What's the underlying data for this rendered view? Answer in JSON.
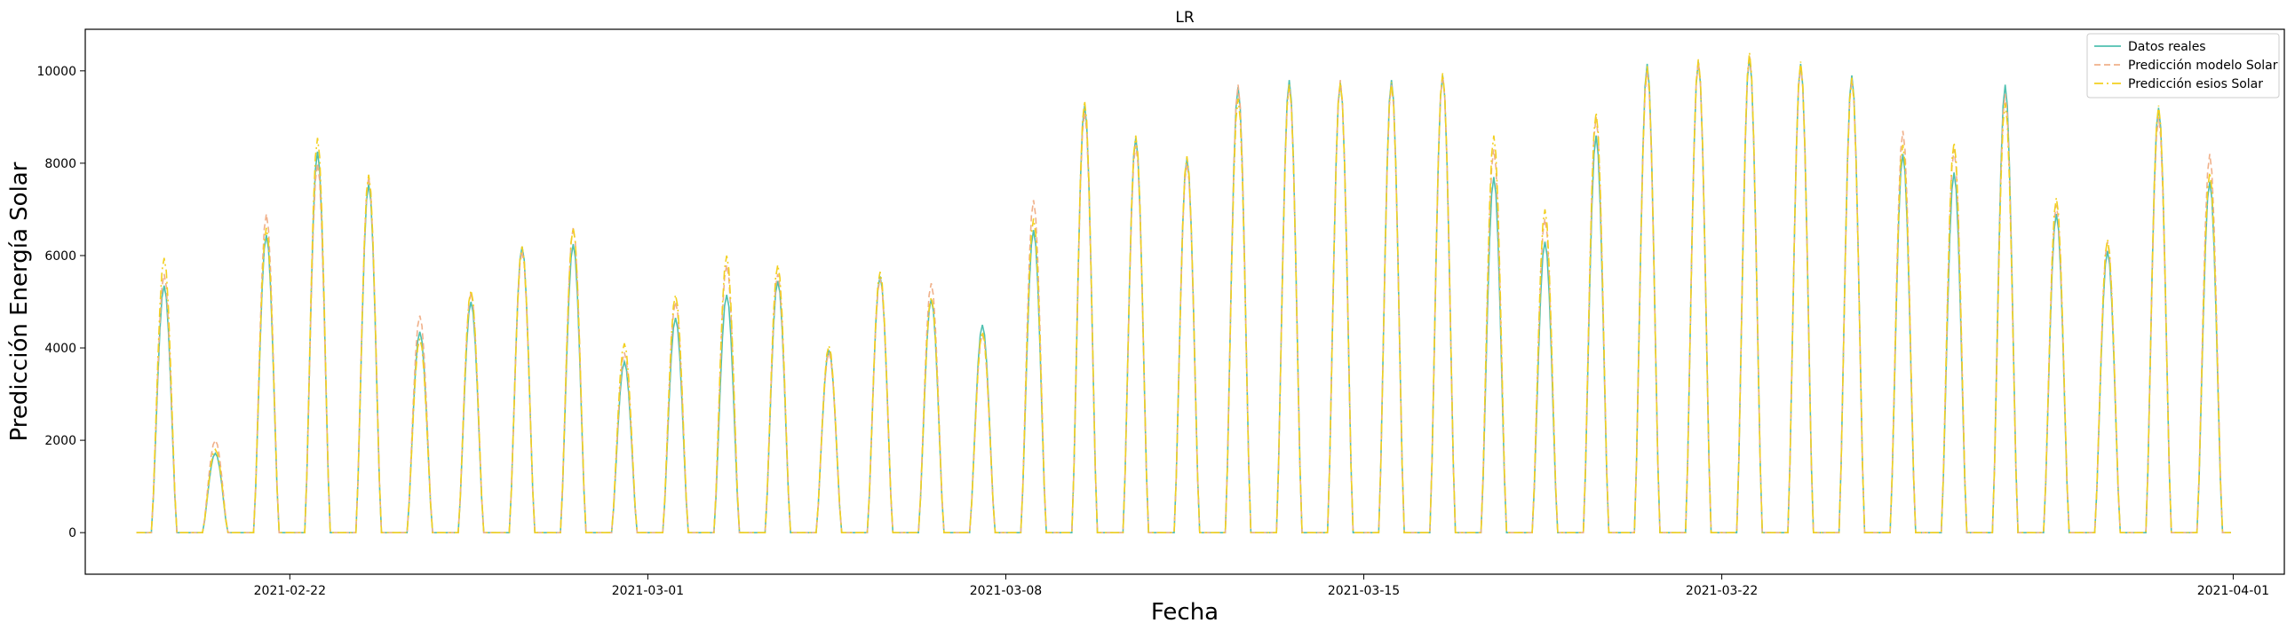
{
  "chart_data": {
    "type": "line",
    "title": "LR",
    "xlabel": "Fecha",
    "ylabel": "Predicción Energía Solar",
    "xlim": [
      "2021-02-18",
      "2021-04-02"
    ],
    "ylim": [
      -900,
      10900
    ],
    "x_ticks": [
      "2021-02-22",
      "2021-03-01",
      "2021-03-08",
      "2021-03-15",
      "2021-03-22",
      "2021-04-01"
    ],
    "y_ticks": [
      0,
      2000,
      4000,
      6000,
      8000,
      10000
    ],
    "x_range": [
      "2021-02-19 00:00",
      "2021-03-31 23:00"
    ],
    "resolution": "hourly",
    "daylight_hours": [
      7,
      19
    ],
    "legend_position": "top-right",
    "grid": false,
    "series": [
      {
        "name": "Datos reales",
        "color": "#4fc1b0",
        "style": "solid",
        "daily_peaks": [
          5350,
          1720,
          6450,
          8250,
          7550,
          4350,
          5000,
          6200,
          6250,
          3700,
          4650,
          5150,
          5450,
          3950,
          5550,
          5050,
          4500,
          6550,
          9250,
          8550,
          8100,
          9650,
          9800,
          9750,
          9800,
          9900,
          7700,
          6300,
          8600,
          10150,
          10200,
          10300,
          10150,
          9900,
          8200,
          7800,
          9700,
          6900,
          6100,
          9200,
          7600
        ]
      },
      {
        "name": "Predicción modelo Solar",
        "color": "#f0b08a",
        "style": "dashed",
        "daily_peaks": [
          5600,
          2000,
          6900,
          8000,
          7700,
          4700,
          5200,
          6100,
          6600,
          3900,
          5000,
          5800,
          5600,
          3900,
          5500,
          5400,
          4300,
          7200,
          9100,
          8400,
          8000,
          9700,
          9700,
          9800,
          9700,
          9900,
          8300,
          6800,
          9000,
          10000,
          10200,
          10350,
          10100,
          9800,
          8700,
          8300,
          9500,
          7100,
          6300,
          9000,
          8200
        ]
      },
      {
        "name": "Predicción esios Solar",
        "color": "#f2d020",
        "style": "dashdot",
        "daily_peaks": [
          5950,
          1800,
          6600,
          8550,
          7750,
          4200,
          5250,
          6200,
          6600,
          4100,
          5150,
          6000,
          5800,
          4050,
          5650,
          5100,
          4350,
          6800,
          9350,
          8600,
          8150,
          9400,
          9700,
          9750,
          9750,
          9950,
          8600,
          7000,
          9100,
          10100,
          10250,
          10400,
          10200,
          9850,
          8400,
          8450,
          9300,
          7250,
          6350,
          9250,
          7800
        ]
      }
    ]
  }
}
